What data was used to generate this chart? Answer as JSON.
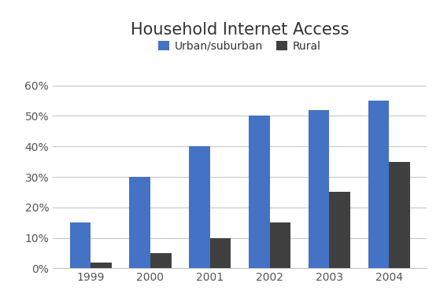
{
  "title": "Household Internet Access",
  "years": [
    "1999",
    "2000",
    "2001",
    "2002",
    "2003",
    "2004"
  ],
  "urban_values": [
    0.15,
    0.3,
    0.4,
    0.5,
    0.52,
    0.55
  ],
  "rural_values": [
    0.02,
    0.05,
    0.1,
    0.15,
    0.25,
    0.35
  ],
  "urban_color": "#4472C4",
  "rural_color": "#404040",
  "legend_labels": [
    "Urban/suburban",
    "Rural"
  ],
  "yticks": [
    0.0,
    0.1,
    0.2,
    0.3,
    0.4,
    0.5,
    0.6
  ],
  "ytick_labels": [
    "0%",
    "10%",
    "20%",
    "30%",
    "40%",
    "50%",
    "60%"
  ],
  "ylim": [
    0,
    0.66
  ],
  "bar_width": 0.35,
  "title_fontsize": 15,
  "tick_fontsize": 10,
  "background_color": "#ffffff",
  "grid_color": "#c8c8c8"
}
